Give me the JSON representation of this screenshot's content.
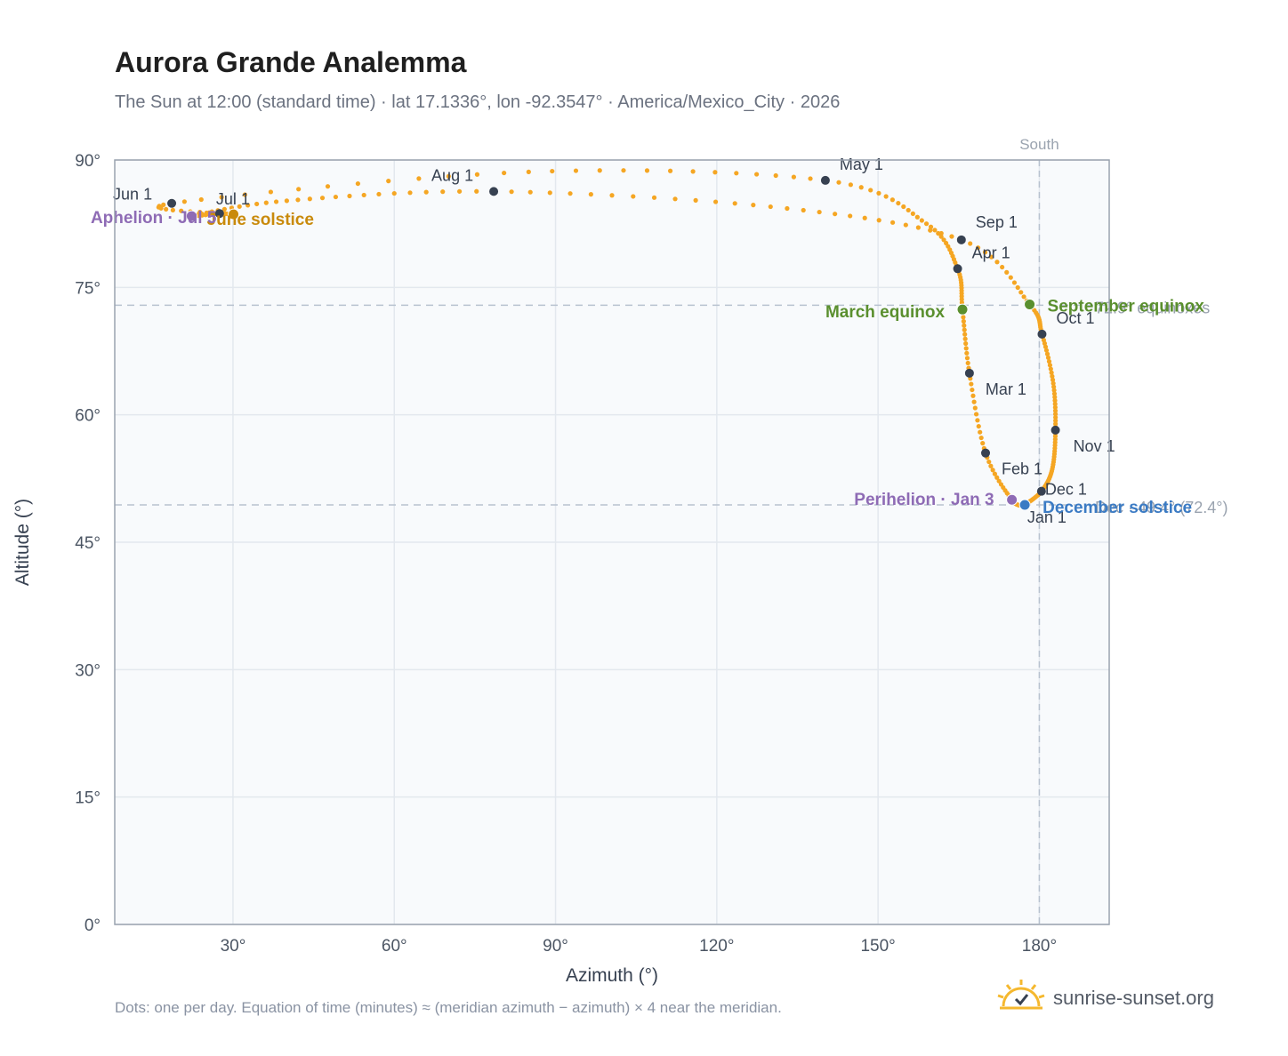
{
  "title": "Aurora Grande Analemma",
  "subtitle": "The Sun at 12:00 (standard time) · lat 17.1336°, lon -92.3547° · America/Mexico_City · 2026",
  "footnote": "Dots: one per day. Equation of time (minutes) ≈ (meridian azimuth − azimuth) × 4 near the meridian.",
  "brand": {
    "name": "sunrise-sunset.org",
    "icon": "sun-check-icon"
  },
  "colors": {
    "curve": "#f5a623",
    "month_marker": "#374151",
    "equinox": "#5a8f2e",
    "solstice_june": "#c98a0b",
    "solstice_december": "#3b7bc4",
    "apsis": "#8e6bb5",
    "reference_line": "#b8c2cf",
    "plot_background": "#f8fafc"
  },
  "chart_data": {
    "type": "scatter",
    "title": "Aurora Grande Analemma",
    "xlabel": "Azimuth (°)",
    "ylabel": "Altitude (°)",
    "xlim": [
      8,
      193
    ],
    "ylim": [
      0,
      90
    ],
    "x_ticks": [
      30,
      60,
      90,
      120,
      150,
      180
    ],
    "x_tick_labels": [
      "30°",
      "60°",
      "90°",
      "120°",
      "150°",
      "180°"
    ],
    "y_ticks": [
      0,
      15,
      30,
      45,
      60,
      75,
      90
    ],
    "y_tick_labels": [
      "0°",
      "15°",
      "30°",
      "45°",
      "60°",
      "75°",
      "90°"
    ],
    "grid": true,
    "south_line": {
      "azimuth": 180,
      "label": "South"
    },
    "reference_lines": [
      {
        "altitude": 72.9,
        "label": "72.9° equinoxes"
      },
      {
        "altitude": 49.4,
        "label": "Dec · 49.4° (72.4°)"
      }
    ],
    "path_keypoints": [
      {
        "date": "Jan 1",
        "az": 177.1,
        "alt": 49.4
      },
      {
        "date": "Jan 3",
        "az": 174.9,
        "alt": 50.0
      },
      {
        "date": "Feb 1",
        "az": 170.0,
        "alt": 55.5
      },
      {
        "date": "Mar 1",
        "az": 167.0,
        "alt": 64.9
      },
      {
        "date": "Mar 20",
        "az": 165.7,
        "alt": 72.4
      },
      {
        "date": "Apr 1",
        "az": 164.8,
        "alt": 77.2
      },
      {
        "date": "Apr 15",
        "az": 159.0,
        "alt": 82.5
      },
      {
        "date": "May 1",
        "az": 140.2,
        "alt": 87.6
      },
      {
        "date": "May 15",
        "az": 85.0,
        "alt": 88.6
      },
      {
        "date": "Jun 1",
        "az": 18.6,
        "alt": 84.9
      },
      {
        "date": "Jun 21",
        "az": 30.1,
        "alt": 83.6
      },
      {
        "date": "Jul 1",
        "az": 27.5,
        "alt": 83.7
      },
      {
        "date": "Jul 5",
        "az": 22.3,
        "alt": 83.4
      },
      {
        "date": "Jul 15",
        "az": 40.0,
        "alt": 85.2
      },
      {
        "date": "Aug 1",
        "az": 78.5,
        "alt": 86.3
      },
      {
        "date": "Aug 15",
        "az": 130.0,
        "alt": 84.5
      },
      {
        "date": "Sep 1",
        "az": 165.5,
        "alt": 80.6
      },
      {
        "date": "Sep 22",
        "az": 178.2,
        "alt": 73.0
      },
      {
        "date": "Oct 1",
        "az": 180.5,
        "alt": 69.5
      },
      {
        "date": "Oct 15",
        "az": 182.6,
        "alt": 63.7
      },
      {
        "date": "Nov 1",
        "az": 183.0,
        "alt": 58.2
      },
      {
        "date": "Nov 15",
        "az": 182.4,
        "alt": 53.6
      },
      {
        "date": "Dec 1",
        "az": 180.4,
        "alt": 51.0
      },
      {
        "date": "Dec 21",
        "az": 177.3,
        "alt": 49.4
      },
      {
        "date": "Dec 31",
        "az": 177.1,
        "alt": 49.4
      }
    ],
    "month_markers": [
      {
        "label": "Jan 1",
        "az": 177.1,
        "alt": 49.4
      },
      {
        "label": "Feb 1",
        "az": 170.0,
        "alt": 55.5
      },
      {
        "label": "Mar 1",
        "az": 167.0,
        "alt": 64.9
      },
      {
        "label": "Apr 1",
        "az": 164.8,
        "alt": 77.2
      },
      {
        "label": "May 1",
        "az": 140.2,
        "alt": 87.6
      },
      {
        "label": "Jun 1",
        "az": 18.6,
        "alt": 84.9
      },
      {
        "label": "Jul 1",
        "az": 27.5,
        "alt": 83.7
      },
      {
        "label": "Aug 1",
        "az": 78.5,
        "alt": 86.3
      },
      {
        "label": "Sep 1",
        "az": 165.5,
        "alt": 80.6
      },
      {
        "label": "Oct 1",
        "az": 180.5,
        "alt": 69.5
      },
      {
        "label": "Nov 1",
        "az": 183.0,
        "alt": 58.2
      },
      {
        "label": "Dec 1",
        "az": 180.4,
        "alt": 51.0
      }
    ],
    "events": [
      {
        "label": "March equinox",
        "az": 165.7,
        "alt": 72.4,
        "kind": "equinox"
      },
      {
        "label": "September equinox",
        "az": 178.2,
        "alt": 73.0,
        "kind": "equinox"
      },
      {
        "label": "June solstice",
        "az": 30.1,
        "alt": 83.6,
        "kind": "solstice_june"
      },
      {
        "label": "December solstice",
        "az": 177.3,
        "alt": 49.4,
        "kind": "solstice_december"
      },
      {
        "label": "Perihelion · Jan 3",
        "az": 174.9,
        "alt": 50.0,
        "kind": "apsis"
      },
      {
        "label": "Aphelion · Jul 5",
        "az": 22.3,
        "alt": 83.4,
        "kind": "apsis"
      }
    ]
  }
}
